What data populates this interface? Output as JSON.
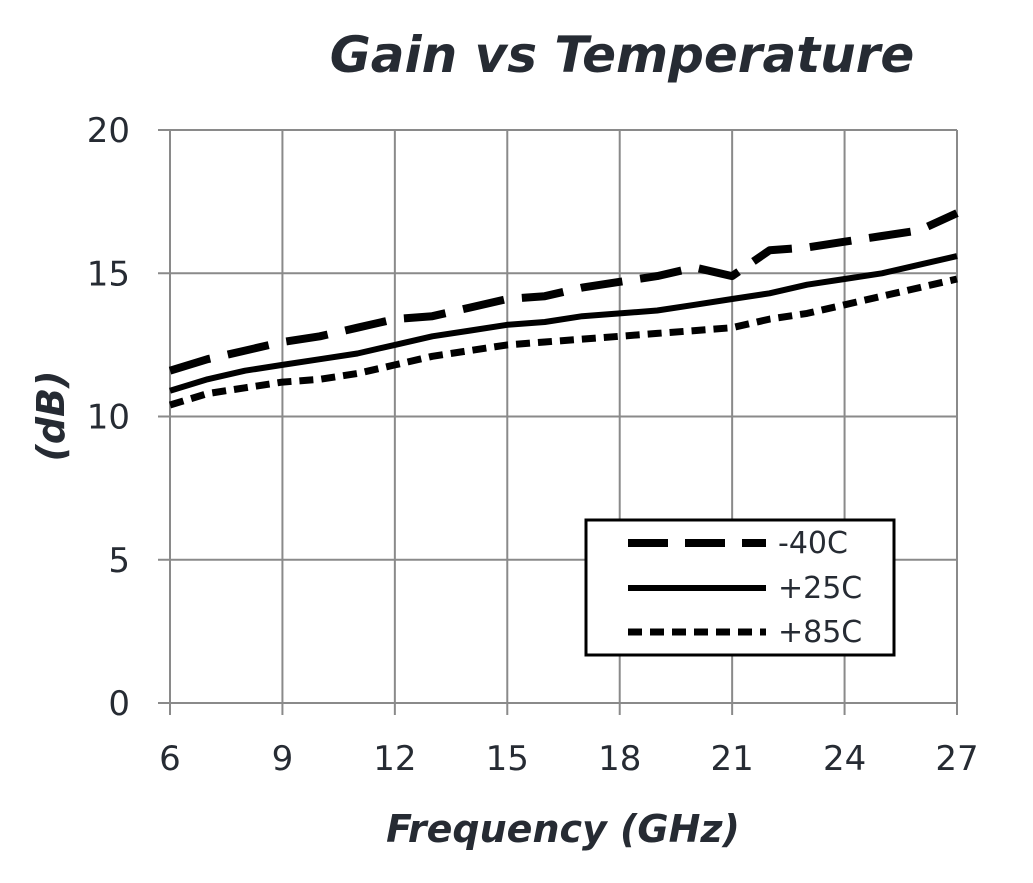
{
  "chart_data": {
    "type": "line",
    "title": "Gain vs Temperature",
    "xlabel": "Frequency (GHz)",
    "ylabel": "(dB)",
    "xlim": [
      6,
      27
    ],
    "ylim": [
      0,
      20
    ],
    "xticks": [
      "6",
      "9",
      "12",
      "15",
      "18",
      "21",
      "24",
      "27"
    ],
    "yticks": [
      "0",
      "5",
      "10",
      "15",
      "20"
    ],
    "grid": true,
    "legend_position": "bottom-right",
    "series": [
      {
        "name": "-40C",
        "style": "long-dash",
        "x": [
          6,
          7,
          8,
          9,
          10,
          11,
          12,
          13,
          14,
          15,
          16,
          17,
          18,
          19,
          20,
          21,
          22,
          23,
          24,
          25,
          26,
          27
        ],
        "y": [
          11.6,
          12.0,
          12.3,
          12.6,
          12.8,
          13.1,
          13.4,
          13.5,
          13.8,
          14.1,
          14.2,
          14.5,
          14.7,
          14.9,
          15.2,
          14.9,
          15.8,
          15.9,
          16.1,
          16.3,
          16.5,
          17.1
        ]
      },
      {
        "name": "+25C",
        "style": "solid",
        "x": [
          6,
          7,
          8,
          9,
          10,
          11,
          12,
          13,
          14,
          15,
          16,
          17,
          18,
          19,
          20,
          21,
          22,
          23,
          24,
          25,
          26,
          27
        ],
        "y": [
          10.9,
          11.3,
          11.6,
          11.8,
          12.0,
          12.2,
          12.5,
          12.8,
          13.0,
          13.2,
          13.3,
          13.5,
          13.6,
          13.7,
          13.9,
          14.1,
          14.3,
          14.6,
          14.8,
          15.0,
          15.3,
          15.6
        ]
      },
      {
        "name": "+85C",
        "style": "short-dash",
        "x": [
          6,
          7,
          8,
          9,
          10,
          11,
          12,
          13,
          14,
          15,
          16,
          17,
          18,
          19,
          20,
          21,
          22,
          23,
          24,
          25,
          26,
          27
        ],
        "y": [
          10.4,
          10.8,
          11.0,
          11.2,
          11.3,
          11.5,
          11.8,
          12.1,
          12.3,
          12.5,
          12.6,
          12.7,
          12.8,
          12.9,
          13.0,
          13.1,
          13.4,
          13.6,
          13.9,
          14.2,
          14.5,
          14.8
        ]
      }
    ]
  }
}
